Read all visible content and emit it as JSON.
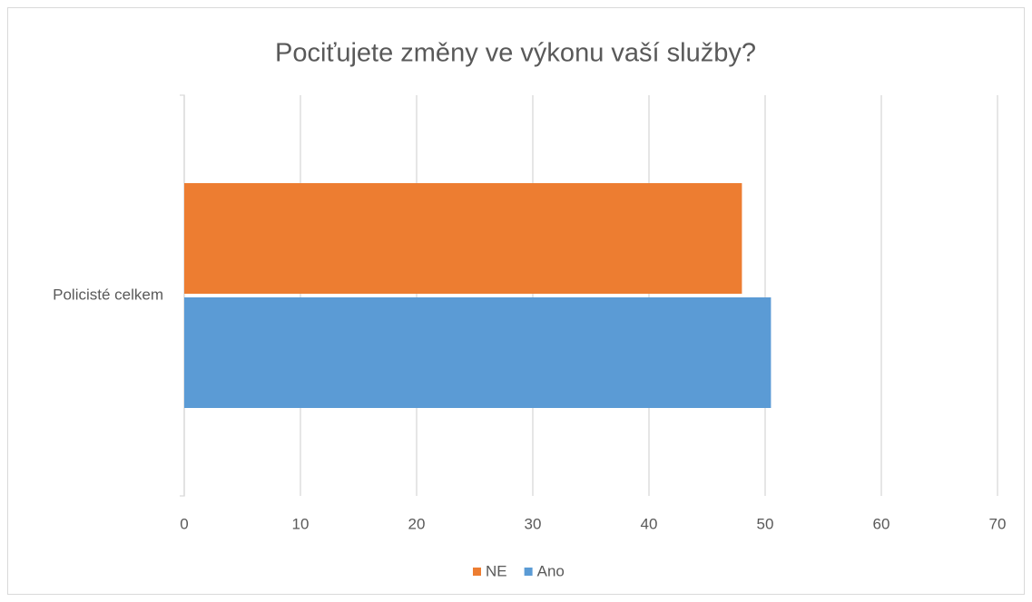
{
  "chart_data": {
    "type": "bar",
    "orientation": "horizontal",
    "title": "Pociťujete změny ve výkonu vaší služby?",
    "categories": [
      "Policisté celkem"
    ],
    "series": [
      {
        "name": "NE",
        "color": "#ed7d31",
        "values": [
          48
        ]
      },
      {
        "name": "Ano",
        "color": "#5b9bd5",
        "values": [
          50.5
        ]
      }
    ],
    "xlim": [
      0,
      70
    ],
    "xticks": [
      0,
      10,
      20,
      30,
      40,
      50,
      60,
      70
    ],
    "grid": true,
    "legend": "bottom"
  }
}
